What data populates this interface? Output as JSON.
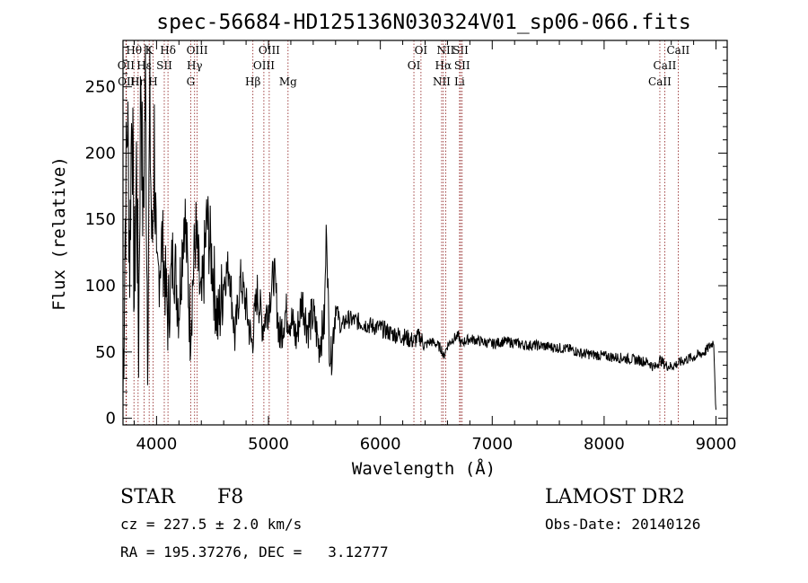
{
  "chart_data": {
    "type": "line",
    "title": "spec-56684-HD125136N030324V01_sp06-066.fits",
    "xlabel": "Wavelength (Å)",
    "ylabel": "Flux (relative)",
    "xlim": [
      3700,
      9100
    ],
    "ylim": [
      -5,
      285
    ],
    "x_ticks": [
      4000,
      5000,
      6000,
      7000,
      8000,
      9000
    ],
    "y_ticks": [
      0,
      50,
      100,
      150,
      200,
      250
    ],
    "grid": false,
    "series": [
      {
        "name": "flux",
        "x": [
          3700,
          3720,
          3740,
          3760,
          3780,
          3800,
          3820,
          3840,
          3860,
          3880,
          3900,
          3920,
          3940,
          3960,
          3980,
          4000,
          4050,
          4100,
          4150,
          4200,
          4250,
          4300,
          4350,
          4400,
          4450,
          4500,
          4550,
          4600,
          4650,
          4700,
          4750,
          4800,
          4850,
          4900,
          4950,
          5000,
          5050,
          5100,
          5150,
          5200,
          5250,
          5300,
          5350,
          5400,
          5450,
          5500,
          5520,
          5540,
          5560,
          5600,
          5650,
          5700,
          5800,
          5900,
          6000,
          6100,
          6200,
          6300,
          6350,
          6400,
          6450,
          6500,
          6550,
          6563,
          6600,
          6650,
          6700,
          6720,
          6750,
          6800,
          6900,
          7000,
          7100,
          7200,
          7300,
          7400,
          7500,
          7600,
          7700,
          7800,
          7900,
          8000,
          8100,
          8200,
          8300,
          8400,
          8450,
          8500,
          8550,
          8600,
          8650,
          8700,
          8750,
          8800,
          8850,
          8900,
          8950,
          8980,
          9000
        ],
        "values": [
          20,
          150,
          230,
          120,
          250,
          90,
          190,
          60,
          270,
          140,
          260,
          70,
          230,
          120,
          210,
          95,
          135,
          75,
          125,
          85,
          160,
          70,
          140,
          80,
          150,
          115,
          70,
          105,
          115,
          60,
          105,
          85,
          55,
          95,
          70,
          85,
          110,
          60,
          80,
          75,
          60,
          90,
          68,
          78,
          55,
          72,
          150,
          62,
          45,
          85,
          68,
          75,
          73,
          70,
          68,
          64,
          62,
          58,
          62,
          55,
          58,
          56,
          52,
          46,
          55,
          60,
          62,
          56,
          58,
          60,
          58,
          56,
          58,
          57,
          55,
          55,
          54,
          53,
          52,
          49,
          48,
          47,
          46,
          45,
          44,
          42,
          38,
          44,
          40,
          39,
          41,
          43,
          45,
          46,
          48,
          50,
          55,
          58,
          3
        ]
      }
    ],
    "line_markers": [
      {
        "label": "Hθ",
        "wavelength": 3798,
        "row": 1
      },
      {
        "label": "OII",
        "wavelength": 3727,
        "row": 2
      },
      {
        "label": "OII",
        "wavelength": 3730,
        "row": 3
      },
      {
        "label": "K",
        "wavelength": 3934,
        "row": 1
      },
      {
        "label": "Hε",
        "wavelength": 3889,
        "row": 2
      },
      {
        "label": "Hη",
        "wavelength": 3835,
        "row": 3
      },
      {
        "label": "SII",
        "wavelength": 4069,
        "row": 2
      },
      {
        "label": "H",
        "wavelength": 3969,
        "row": 3
      },
      {
        "label": "Hδ",
        "wavelength": 4102,
        "row": 1
      },
      {
        "label": "OIII",
        "wavelength": 4363,
        "row": 1
      },
      {
        "label": "Hγ",
        "wavelength": 4340,
        "row": 2
      },
      {
        "label": "G",
        "wavelength": 4305,
        "row": 3
      },
      {
        "label": "OIII",
        "wavelength": 5007,
        "row": 1
      },
      {
        "label": "OIII",
        "wavelength": 4959,
        "row": 2
      },
      {
        "label": "Hβ",
        "wavelength": 4861,
        "row": 3
      },
      {
        "label": "Mg",
        "wavelength": 5175,
        "row": 3
      },
      {
        "label": "OI",
        "wavelength": 6363,
        "row": 1
      },
      {
        "label": "OI",
        "wavelength": 6300,
        "row": 2
      },
      {
        "label": "NII",
        "wavelength": 6584,
        "row": 1
      },
      {
        "label": "SII",
        "wavelength": 6717,
        "row": 1
      },
      {
        "label": "Hα",
        "wavelength": 6563,
        "row": 2
      },
      {
        "label": "SII",
        "wavelength": 6731,
        "row": 2
      },
      {
        "label": "NII",
        "wavelength": 6548,
        "row": 3
      },
      {
        "label": "Li",
        "wavelength": 6708,
        "row": 3
      },
      {
        "label": "CaII",
        "wavelength": 8662,
        "row": 1
      },
      {
        "label": "CaII",
        "wavelength": 8542,
        "row": 2
      },
      {
        "label": "CaII",
        "wavelength": 8498,
        "row": 3
      }
    ]
  },
  "info": {
    "class": "STAR",
    "subclass": "F8",
    "survey": "LAMOST DR2",
    "cz": "cz = 227.5 ± 2.0 km/s",
    "obs_date": "Obs-Date: 20140126",
    "coords": "RA = 195.37276, DEC =   3.12777"
  },
  "colors": {
    "spectrum": "#000000",
    "marker_line": "#8b1a1a",
    "axes": "#000000"
  }
}
